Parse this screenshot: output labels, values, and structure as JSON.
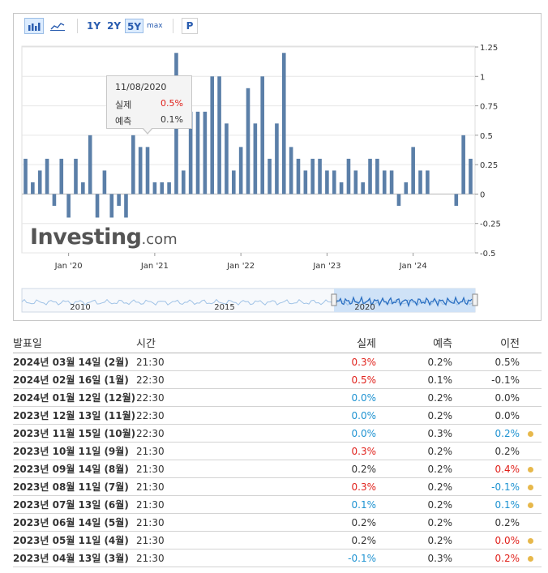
{
  "toolbar": {
    "range_1y": "1Y",
    "range_2y": "2Y",
    "range_5y": "5Y",
    "range_max": "max",
    "p_label": "P"
  },
  "tooltip": {
    "date": "11/08/2020",
    "actual_label": "실제",
    "actual_value": "0.5%",
    "forecast_label": "예측",
    "forecast_value": "0.1%"
  },
  "brand": {
    "name": "Investing",
    "suffix": ".com"
  },
  "chart_data": {
    "type": "bar",
    "title": "",
    "xlabel": "",
    "ylabel": "",
    "ylim": [
      -0.5,
      1.25
    ],
    "yticks": [
      1.25,
      1,
      0.75,
      0.5,
      0.25,
      0,
      -0.25,
      -0.5
    ],
    "ytick_labels": [
      "1.25",
      "1",
      "0.75",
      "0.5",
      "0.25",
      "0",
      "-0.25",
      "-0.5"
    ],
    "xtick_labels": [
      "Jan '20",
      "Jan '21",
      "Jan '22",
      "Jan '23",
      "Jan '24"
    ],
    "xtick_index": [
      6,
      18,
      30,
      42,
      54
    ],
    "bar_color": "#5b7fa8",
    "values": [
      0.3,
      0.1,
      0.2,
      0.3,
      -0.1,
      0.3,
      -0.2,
      0.3,
      0.1,
      0.5,
      -0.2,
      0.2,
      -0.2,
      -0.1,
      -0.2,
      0.5,
      0.4,
      0.4,
      0.1,
      0.1,
      0.1,
      1.2,
      0.2,
      0.7,
      0.7,
      0.7,
      1.0,
      1.0,
      0.6,
      0.2,
      0.4,
      0.9,
      0.6,
      1.0,
      0.3,
      0.6,
      1.2,
      0.4,
      0.3,
      0.2,
      0.3,
      0.3,
      0.2,
      0.2,
      0.1,
      0.3,
      0.2,
      0.1,
      0.3,
      0.3,
      0.2,
      0.2,
      -0.1,
      0.1,
      0.4,
      0.2,
      0.2,
      0.0,
      0.0,
      0.0,
      -0.1,
      0.5,
      0.3
    ],
    "navigator_labels": [
      "2010",
      "2015",
      "2020"
    ]
  },
  "table": {
    "headers": {
      "date": "발표일",
      "time": "시간",
      "actual": "실제",
      "forecast": "예측",
      "previous": "이전"
    },
    "rows": [
      {
        "date": "2024년 03월 14일 (2월)",
        "time": "21:30",
        "actual": "0.3%",
        "forecast": "0.2%",
        "previous": "0.5%",
        "actual_color": "#e0211b",
        "previous_color": "#333333",
        "revised": false
      },
      {
        "date": "2024년 02월 16일 (1월)",
        "time": "22:30",
        "actual": "0.5%",
        "forecast": "0.1%",
        "previous": "-0.1%",
        "actual_color": "#e0211b",
        "previous_color": "#333333",
        "revised": false
      },
      {
        "date": "2024년 01월 12일 (12월)",
        "time": "22:30",
        "actual": "0.0%",
        "forecast": "0.2%",
        "previous": "0.0%",
        "actual_color": "#1d92d1",
        "previous_color": "#333333",
        "revised": false
      },
      {
        "date": "2023년 12월 13일 (11월)",
        "time": "22:30",
        "actual": "0.0%",
        "forecast": "0.2%",
        "previous": "0.0%",
        "actual_color": "#1d92d1",
        "previous_color": "#333333",
        "revised": false
      },
      {
        "date": "2023년 11월 15일 (10월)",
        "time": "22:30",
        "actual": "0.0%",
        "forecast": "0.3%",
        "previous": "0.2%",
        "actual_color": "#1d92d1",
        "previous_color": "#1d92d1",
        "revised": true
      },
      {
        "date": "2023년 10월 11일 (9월)",
        "time": "21:30",
        "actual": "0.3%",
        "forecast": "0.2%",
        "previous": "0.2%",
        "actual_color": "#e0211b",
        "previous_color": "#333333",
        "revised": false
      },
      {
        "date": "2023년 09월 14일 (8월)",
        "time": "21:30",
        "actual": "0.2%",
        "forecast": "0.2%",
        "previous": "0.4%",
        "actual_color": "#333333",
        "previous_color": "#e0211b",
        "revised": true
      },
      {
        "date": "2023년 08월 11일 (7월)",
        "time": "21:30",
        "actual": "0.3%",
        "forecast": "0.2%",
        "previous": "-0.1%",
        "actual_color": "#e0211b",
        "previous_color": "#1d92d1",
        "revised": true
      },
      {
        "date": "2023년 07월 13일 (6월)",
        "time": "21:30",
        "actual": "0.1%",
        "forecast": "0.2%",
        "previous": "0.1%",
        "actual_color": "#1d92d1",
        "previous_color": "#1d92d1",
        "revised": true
      },
      {
        "date": "2023년 06월 14일 (5월)",
        "time": "21:30",
        "actual": "0.2%",
        "forecast": "0.2%",
        "previous": "0.2%",
        "actual_color": "#333333",
        "previous_color": "#333333",
        "revised": false
      },
      {
        "date": "2023년 05월 11일 (4월)",
        "time": "21:30",
        "actual": "0.2%",
        "forecast": "0.2%",
        "previous": "0.0%",
        "actual_color": "#333333",
        "previous_color": "#e0211b",
        "revised": true
      },
      {
        "date": "2023년 04월 13일 (3월)",
        "time": "21:30",
        "actual": "-0.1%",
        "forecast": "0.3%",
        "previous": "0.2%",
        "actual_color": "#1d92d1",
        "previous_color": "#e0211b",
        "revised": true
      }
    ]
  }
}
